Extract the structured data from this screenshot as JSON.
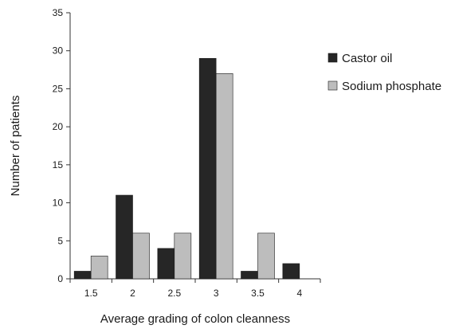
{
  "chart_data": {
    "type": "bar",
    "title": "",
    "xlabel": "Average grading of colon cleanness",
    "ylabel": "Number of patients",
    "categories": [
      "1.5",
      "2",
      "2.5",
      "3",
      "3.5",
      "4"
    ],
    "series": [
      {
        "name": "Castor oil",
        "color": "#262626",
        "values": [
          1,
          11,
          4,
          29,
          1,
          2
        ]
      },
      {
        "name": "Sodium phosphate",
        "color": "#bdbdbd",
        "values": [
          3,
          6,
          6,
          27,
          6,
          0
        ]
      }
    ],
    "ylim": [
      0,
      35
    ],
    "yticks": [
      0,
      5,
      10,
      15,
      20,
      25,
      30,
      35
    ],
    "grid": false,
    "legend": "right"
  }
}
